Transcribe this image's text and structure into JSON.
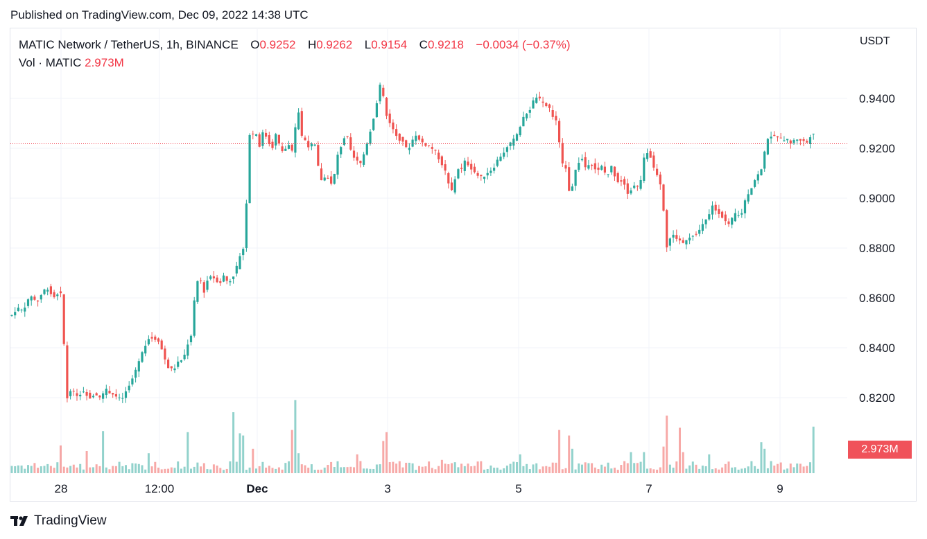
{
  "published": "Published on TradingView.com, Dec 09, 2022 14:38 UTC",
  "legend": {
    "symbol": "MATIC Network / TetherUS, 1h, BINANCE",
    "o_label": "O",
    "o": "0.9252",
    "h_label": "H",
    "h": "0.9262",
    "l_label": "L",
    "l": "0.9154",
    "c_label": "C",
    "c": "0.9218",
    "change": "−0.0034 (−0.37%)"
  },
  "volume_legend": {
    "label": "Vol · MATIC",
    "value": "2.973M"
  },
  "brand": {
    "name": "TradingView",
    "icon": "tradingview-logo-icon"
  },
  "colors": {
    "up": "#26a69a",
    "down": "#ef5350",
    "last_price_line": "#f23645",
    "volume_tag": "#f0525a"
  },
  "chart_data": {
    "type": "candlestick",
    "symbol": "MATICUSDT",
    "interval": "1h",
    "y_unit": "USDT",
    "ylim": [
      0.8,
      0.955
    ],
    "y_ticks": [
      "0.9400",
      "0.9200",
      "0.9000",
      "0.8800",
      "0.8600",
      "0.8400",
      "0.8200"
    ],
    "x_ticks": [
      "28",
      "12:00",
      "Dec",
      "3",
      "5",
      "7",
      "9"
    ],
    "x_tick_bold": "Dec",
    "last_price": 0.9218,
    "last_volume_label": "2.973M",
    "grid": true,
    "price_path": [
      [
        0,
        0.853
      ],
      [
        7,
        0.856
      ],
      [
        14,
        0.855
      ],
      [
        22,
        0.858
      ],
      [
        28,
        0.861
      ],
      [
        36,
        0.858
      ],
      [
        46,
        0.863
      ],
      [
        52,
        0.864
      ],
      [
        60,
        0.86
      ],
      [
        66,
        0.862
      ],
      [
        70,
        0.862
      ],
      [
        72,
        0.859
      ],
      [
        73,
        0.845
      ],
      [
        75,
        0.842
      ],
      [
        77,
        0.836
      ],
      [
        78,
        0.818
      ],
      [
        80,
        0.82
      ],
      [
        83,
        0.824
      ],
      [
        88,
        0.822
      ],
      [
        96,
        0.821
      ],
      [
        104,
        0.823
      ],
      [
        112,
        0.82
      ],
      [
        120,
        0.822
      ],
      [
        128,
        0.82
      ],
      [
        136,
        0.823
      ],
      [
        144,
        0.822
      ],
      [
        152,
        0.82
      ],
      [
        158,
        0.819
      ],
      [
        164,
        0.822
      ],
      [
        170,
        0.825
      ],
      [
        176,
        0.829
      ],
      [
        182,
        0.834
      ],
      [
        188,
        0.838
      ],
      [
        196,
        0.844
      ],
      [
        204,
        0.844
      ],
      [
        212,
        0.843
      ],
      [
        220,
        0.836
      ],
      [
        226,
        0.832
      ],
      [
        232,
        0.831
      ],
      [
        240,
        0.834
      ],
      [
        248,
        0.836
      ],
      [
        254,
        0.842
      ],
      [
        258,
        0.843
      ],
      [
        262,
        0.855
      ],
      [
        266,
        0.866
      ],
      [
        272,
        0.868
      ],
      [
        276,
        0.861
      ],
      [
        280,
        0.866
      ],
      [
        286,
        0.869
      ],
      [
        292,
        0.868
      ],
      [
        300,
        0.866
      ],
      [
        306,
        0.869
      ],
      [
        312,
        0.866
      ],
      [
        318,
        0.868
      ],
      [
        324,
        0.872
      ],
      [
        330,
        0.878
      ],
      [
        334,
        0.88
      ],
      [
        338,
        0.895
      ],
      [
        340,
        0.912
      ],
      [
        343,
        0.926
      ],
      [
        346,
        0.922
      ],
      [
        350,
        0.93
      ],
      [
        356,
        0.92
      ],
      [
        362,
        0.926
      ],
      [
        370,
        0.924
      ],
      [
        374,
        0.918
      ],
      [
        380,
        0.926
      ],
      [
        386,
        0.921
      ],
      [
        392,
        0.918
      ],
      [
        398,
        0.922
      ],
      [
        404,
        0.918
      ],
      [
        410,
        0.93
      ],
      [
        414,
        0.935
      ],
      [
        418,
        0.925
      ],
      [
        424,
        0.923
      ],
      [
        430,
        0.92
      ],
      [
        436,
        0.923
      ],
      [
        442,
        0.912
      ],
      [
        448,
        0.906
      ],
      [
        454,
        0.91
      ],
      [
        460,
        0.905
      ],
      [
        466,
        0.91
      ],
      [
        470,
        0.917
      ],
      [
        476,
        0.922
      ],
      [
        482,
        0.926
      ],
      [
        486,
        0.922
      ],
      [
        492,
        0.915
      ],
      [
        496,
        0.918
      ],
      [
        500,
        0.912
      ],
      [
        506,
        0.916
      ],
      [
        512,
        0.922
      ],
      [
        518,
        0.928
      ],
      [
        524,
        0.935
      ],
      [
        532,
        0.946
      ],
      [
        536,
        0.94
      ],
      [
        540,
        0.934
      ],
      [
        546,
        0.93
      ],
      [
        552,
        0.926
      ],
      [
        558,
        0.924
      ],
      [
        564,
        0.923
      ],
      [
        570,
        0.919
      ],
      [
        576,
        0.922
      ],
      [
        582,
        0.926
      ],
      [
        588,
        0.923
      ],
      [
        594,
        0.922
      ],
      [
        600,
        0.921
      ],
      [
        606,
        0.92
      ],
      [
        612,
        0.918
      ],
      [
        620,
        0.914
      ],
      [
        626,
        0.91
      ],
      [
        632,
        0.903
      ],
      [
        636,
        0.903
      ],
      [
        640,
        0.909
      ],
      [
        644,
        0.912
      ],
      [
        648,
        0.911
      ],
      [
        654,
        0.915
      ],
      [
        660,
        0.913
      ],
      [
        666,
        0.911
      ],
      [
        672,
        0.909
      ],
      [
        678,
        0.908
      ],
      [
        684,
        0.91
      ],
      [
        690,
        0.911
      ],
      [
        696,
        0.913
      ],
      [
        702,
        0.916
      ],
      [
        708,
        0.918
      ],
      [
        714,
        0.92
      ],
      [
        720,
        0.922
      ],
      [
        726,
        0.924
      ],
      [
        732,
        0.928
      ],
      [
        738,
        0.932
      ],
      [
        742,
        0.934
      ],
      [
        748,
        0.936
      ],
      [
        754,
        0.94
      ],
      [
        758,
        0.941
      ],
      [
        762,
        0.939
      ],
      [
        768,
        0.937
      ],
      [
        774,
        0.937
      ],
      [
        780,
        0.933
      ],
      [
        786,
        0.93
      ],
      [
        790,
        0.922
      ],
      [
        794,
        0.914
      ],
      [
        798,
        0.914
      ],
      [
        802,
        0.905
      ],
      [
        806,
        0.901
      ],
      [
        810,
        0.908
      ],
      [
        816,
        0.914
      ],
      [
        822,
        0.916
      ],
      [
        828,
        0.912
      ],
      [
        834,
        0.915
      ],
      [
        840,
        0.912
      ],
      [
        846,
        0.911
      ],
      [
        852,
        0.913
      ],
      [
        858,
        0.908
      ],
      [
        864,
        0.913
      ],
      [
        870,
        0.909
      ],
      [
        876,
        0.906
      ],
      [
        882,
        0.908
      ],
      [
        886,
        0.903
      ],
      [
        890,
        0.902
      ],
      [
        896,
        0.905
      ],
      [
        902,
        0.904
      ],
      [
        908,
        0.908
      ],
      [
        912,
        0.916
      ],
      [
        918,
        0.919
      ],
      [
        922,
        0.916
      ],
      [
        926,
        0.912
      ],
      [
        930,
        0.91
      ],
      [
        934,
        0.908
      ],
      [
        938,
        0.902
      ],
      [
        942,
        0.889
      ],
      [
        946,
        0.877
      ],
      [
        950,
        0.885
      ],
      [
        956,
        0.885
      ],
      [
        962,
        0.883
      ],
      [
        968,
        0.882
      ],
      [
        974,
        0.884
      ],
      [
        980,
        0.885
      ],
      [
        986,
        0.886
      ],
      [
        992,
        0.887
      ],
      [
        998,
        0.89
      ],
      [
        1004,
        0.892
      ],
      [
        1010,
        0.897
      ],
      [
        1016,
        0.895
      ],
      [
        1022,
        0.894
      ],
      [
        1028,
        0.891
      ],
      [
        1034,
        0.889
      ],
      [
        1040,
        0.892
      ],
      [
        1046,
        0.895
      ],
      [
        1050,
        0.891
      ],
      [
        1056,
        0.898
      ],
      [
        1062,
        0.902
      ],
      [
        1068,
        0.905
      ],
      [
        1074,
        0.909
      ],
      [
        1080,
        0.91
      ],
      [
        1084,
        0.915
      ],
      [
        1088,
        0.922
      ],
      [
        1092,
        0.926
      ],
      [
        1098,
        0.924
      ],
      [
        1104,
        0.925
      ],
      [
        1110,
        0.923
      ],
      [
        1116,
        0.924
      ],
      [
        1122,
        0.922
      ],
      [
        1128,
        0.923
      ],
      [
        1134,
        0.924
      ],
      [
        1140,
        0.923
      ],
      [
        1146,
        0.922
      ],
      [
        1150,
        0.924
      ],
      [
        1154,
        0.927
      ],
      [
        1158,
        0.926
      ],
      [
        1162,
        0.922
      ]
    ],
    "tall_volume_bars": [
      [
        70,
        0.25
      ],
      [
        108,
        0.2
      ],
      [
        133,
        0.38
      ],
      [
        199,
        0.18
      ],
      [
        254,
        0.37
      ],
      [
        318,
        0.55
      ],
      [
        328,
        0.36
      ],
      [
        334,
        0.34
      ],
      [
        350,
        0.22
      ],
      [
        402,
        0.39
      ],
      [
        408,
        0.66
      ],
      [
        414,
        0.18
      ],
      [
        496,
        0.27
      ],
      [
        500,
        0.17
      ],
      [
        536,
        0.29
      ],
      [
        540,
        0.37
      ],
      [
        620,
        0.12
      ],
      [
        734,
        0.17
      ],
      [
        790,
        0.39
      ],
      [
        806,
        0.34
      ],
      [
        810,
        0.22
      ],
      [
        892,
        0.19
      ],
      [
        914,
        0.19
      ],
      [
        942,
        0.24
      ],
      [
        946,
        0.52
      ],
      [
        964,
        0.41
      ],
      [
        970,
        0.19
      ],
      [
        1004,
        0.17
      ],
      [
        1082,
        0.28
      ],
      [
        1086,
        0.22
      ],
      [
        1156,
        0.42
      ]
    ]
  }
}
